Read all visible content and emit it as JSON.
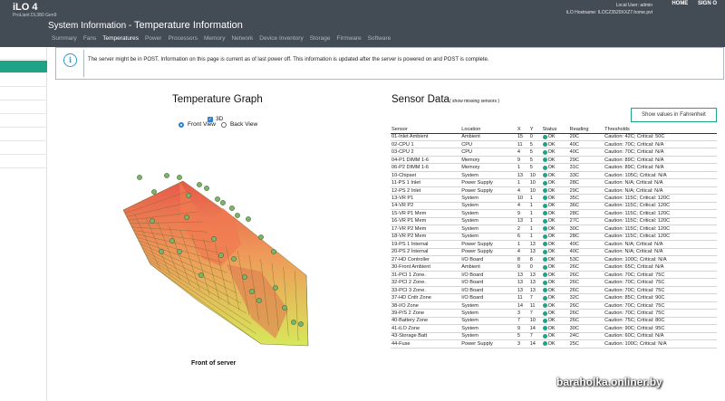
{
  "header": {
    "brand": "iLO 4",
    "brand_sub": "ProLiant DL380 Gen9",
    "local_user": "Local User: admin",
    "hostname": "iLO Hostname: ILOCZ3520XXZ7.home.pvt",
    "home": "HOME",
    "signout": "SIGN O",
    "section": "System Information",
    "page_title": "Temperature Information"
  },
  "tabs": [
    {
      "label": "Summary",
      "active": false
    },
    {
      "label": "Fans",
      "active": false
    },
    {
      "label": "Temperatures",
      "active": true
    },
    {
      "label": "Power",
      "active": false
    },
    {
      "label": "Processors",
      "active": false
    },
    {
      "label": "Memory",
      "active": false
    },
    {
      "label": "Network",
      "active": false
    },
    {
      "label": "Device Inventory",
      "active": false
    },
    {
      "label": "Storage",
      "active": false
    },
    {
      "label": "Firmware",
      "active": false
    },
    {
      "label": "Software",
      "active": false
    }
  ],
  "banner": {
    "icon": "info-icon",
    "icon_glyph": "i",
    "text": "The server might be in POST. Information on this page is current as of last power off. This information is updated after the server is powered on and POST is complete."
  },
  "graph": {
    "title": "Temperature Graph",
    "checkbox_3d": "3D",
    "checked_3d": true,
    "front_view": "Front View",
    "back_view": "Back View",
    "selected_view": "front",
    "caption": "Front of server"
  },
  "sensors": {
    "title": "Sensor Data",
    "missing_link": "( show missing sensors )",
    "fahrenheit_button": "Show values in Fahrenheit",
    "columns": [
      "Sensor",
      "Location",
      "X",
      "Y",
      "Status",
      "Reading",
      "Thresholds"
    ],
    "status_color": "#1fa386",
    "rows": [
      {
        "sensor": "01-Inlet Ambient",
        "location": "Ambient",
        "x": "15",
        "y": "0",
        "status": "OK",
        "reading": "20C",
        "thresholds": "Caution: 42C; Critical: 50C"
      },
      {
        "sensor": "02-CPU 1",
        "location": "CPU",
        "x": "11",
        "y": "5",
        "status": "OK",
        "reading": "40C",
        "thresholds": "Caution: 70C; Critical: N/A"
      },
      {
        "sensor": "03-CPU 2",
        "location": "CPU",
        "x": "4",
        "y": "5",
        "status": "OK",
        "reading": "40C",
        "thresholds": "Caution: 70C; Critical: N/A"
      },
      {
        "sensor": "04-P1 DIMM 1-6",
        "location": "Memory",
        "x": "9",
        "y": "5",
        "status": "OK",
        "reading": "29C",
        "thresholds": "Caution: 89C; Critical: N/A"
      },
      {
        "sensor": "06-P2 DIMM 1-6",
        "location": "Memory",
        "x": "1",
        "y": "5",
        "status": "OK",
        "reading": "31C",
        "thresholds": "Caution: 89C; Critical: N/A"
      },
      {
        "sensor": "10-Chipset",
        "location": "System",
        "x": "13",
        "y": "10",
        "status": "OK",
        "reading": "33C",
        "thresholds": "Caution: 105C; Critical: N/A"
      },
      {
        "sensor": "11-PS 1 Inlet",
        "location": "Power Supply",
        "x": "1",
        "y": "10",
        "status": "OK",
        "reading": "28C",
        "thresholds": "Caution: N/A; Critical: N/A"
      },
      {
        "sensor": "12-PS 2 Inlet",
        "location": "Power Supply",
        "x": "4",
        "y": "10",
        "status": "OK",
        "reading": "29C",
        "thresholds": "Caution: N/A; Critical: N/A"
      },
      {
        "sensor": "13-VR P1",
        "location": "System",
        "x": "10",
        "y": "1",
        "status": "OK",
        "reading": "35C",
        "thresholds": "Caution: 115C; Critical: 120C"
      },
      {
        "sensor": "14-VR P2",
        "location": "System",
        "x": "4",
        "y": "1",
        "status": "OK",
        "reading": "36C",
        "thresholds": "Caution: 115C; Critical: 120C"
      },
      {
        "sensor": "15-VR P1 Mem",
        "location": "System",
        "x": "9",
        "y": "1",
        "status": "OK",
        "reading": "28C",
        "thresholds": "Caution: 115C; Critical: 120C"
      },
      {
        "sensor": "16-VR P1 Mem",
        "location": "System",
        "x": "13",
        "y": "1",
        "status": "OK",
        "reading": "27C",
        "thresholds": "Caution: 115C; Critical: 120C"
      },
      {
        "sensor": "17-VR P2 Mem",
        "location": "System",
        "x": "2",
        "y": "1",
        "status": "OK",
        "reading": "30C",
        "thresholds": "Caution: 115C; Critical: 120C"
      },
      {
        "sensor": "18-VR P2 Mem",
        "location": "System",
        "x": "6",
        "y": "1",
        "status": "OK",
        "reading": "28C",
        "thresholds": "Caution: 115C; Critical: 120C"
      },
      {
        "sensor": "19-PS 1 Internal",
        "location": "Power Supply",
        "x": "1",
        "y": "13",
        "status": "OK",
        "reading": "40C",
        "thresholds": "Caution: N/A; Critical: N/A"
      },
      {
        "sensor": "20-PS 2 Internal",
        "location": "Power Supply",
        "x": "4",
        "y": "13",
        "status": "OK",
        "reading": "40C",
        "thresholds": "Caution: N/A; Critical: N/A"
      },
      {
        "sensor": "27-HD Controller",
        "location": "I/O Board",
        "x": "8",
        "y": "8",
        "status": "OK",
        "reading": "53C",
        "thresholds": "Caution: 100C; Critical: N/A"
      },
      {
        "sensor": "30-Front Ambient",
        "location": "Ambient",
        "x": "9",
        "y": "0",
        "status": "OK",
        "reading": "26C",
        "thresholds": "Caution: 65C; Critical: N/A"
      },
      {
        "sensor": "31-PCI 1 Zone.",
        "location": "I/O Board",
        "x": "13",
        "y": "13",
        "status": "OK",
        "reading": "26C",
        "thresholds": "Caution: 70C; Critical: 75C"
      },
      {
        "sensor": "32-PCI 2 Zone.",
        "location": "I/O Board",
        "x": "13",
        "y": "13",
        "status": "OK",
        "reading": "26C",
        "thresholds": "Caution: 70C; Critical: 75C"
      },
      {
        "sensor": "33-PCI 3 Zone.",
        "location": "I/O Board",
        "x": "13",
        "y": "13",
        "status": "OK",
        "reading": "26C",
        "thresholds": "Caution: 70C; Critical: 75C"
      },
      {
        "sensor": "37-HD Cntlr Zone",
        "location": "I/O Board",
        "x": "11",
        "y": "7",
        "status": "OK",
        "reading": "32C",
        "thresholds": "Caution: 85C; Critical: 90C"
      },
      {
        "sensor": "38-I/O Zone",
        "location": "System",
        "x": "14",
        "y": "11",
        "status": "OK",
        "reading": "26C",
        "thresholds": "Caution: 70C; Critical: 75C"
      },
      {
        "sensor": "39-P/S 2 Zone",
        "location": "System",
        "x": "3",
        "y": "7",
        "status": "OK",
        "reading": "26C",
        "thresholds": "Caution: 70C; Critical: 75C"
      },
      {
        "sensor": "40-Battery Zone",
        "location": "System",
        "x": "7",
        "y": "10",
        "status": "OK",
        "reading": "26C",
        "thresholds": "Caution: 75C; Critical: 80C"
      },
      {
        "sensor": "41-iLO Zone",
        "location": "System",
        "x": "9",
        "y": "14",
        "status": "OK",
        "reading": "30C",
        "thresholds": "Caution: 90C; Critical: 95C"
      },
      {
        "sensor": "43-Storage Batt",
        "location": "System",
        "x": "5",
        "y": "7",
        "status": "OK",
        "reading": "24C",
        "thresholds": "Caution: 60C; Critical: N/A"
      },
      {
        "sensor": "44-Fuse",
        "location": "Power Supply",
        "x": "3",
        "y": "14",
        "status": "OK",
        "reading": "25C",
        "thresholds": "Caution: 100C; Critical: N/A"
      }
    ]
  },
  "watermark": "baraholka.onliner.by"
}
